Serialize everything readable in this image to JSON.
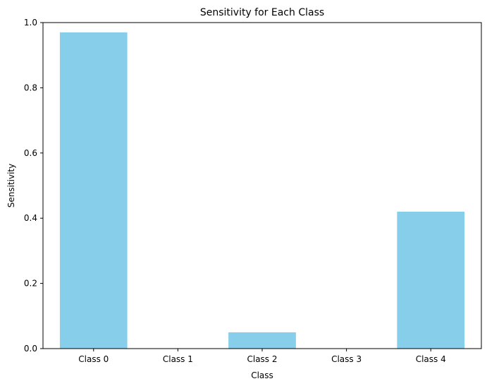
{
  "chart_data": {
    "type": "bar",
    "title": "Sensitivity for Each Class",
    "xlabel": "Class",
    "ylabel": "Sensitivity",
    "categories": [
      "Class 0",
      "Class 1",
      "Class 2",
      "Class 3",
      "Class 4"
    ],
    "values": [
      0.97,
      0.0,
      0.05,
      0.0,
      0.42
    ],
    "ylim": [
      0,
      1.0
    ],
    "yticks": [
      "0.0",
      "0.2",
      "0.4",
      "0.6",
      "0.8",
      "1.0"
    ],
    "bar_color": "#87CEEB",
    "grid": false
  }
}
